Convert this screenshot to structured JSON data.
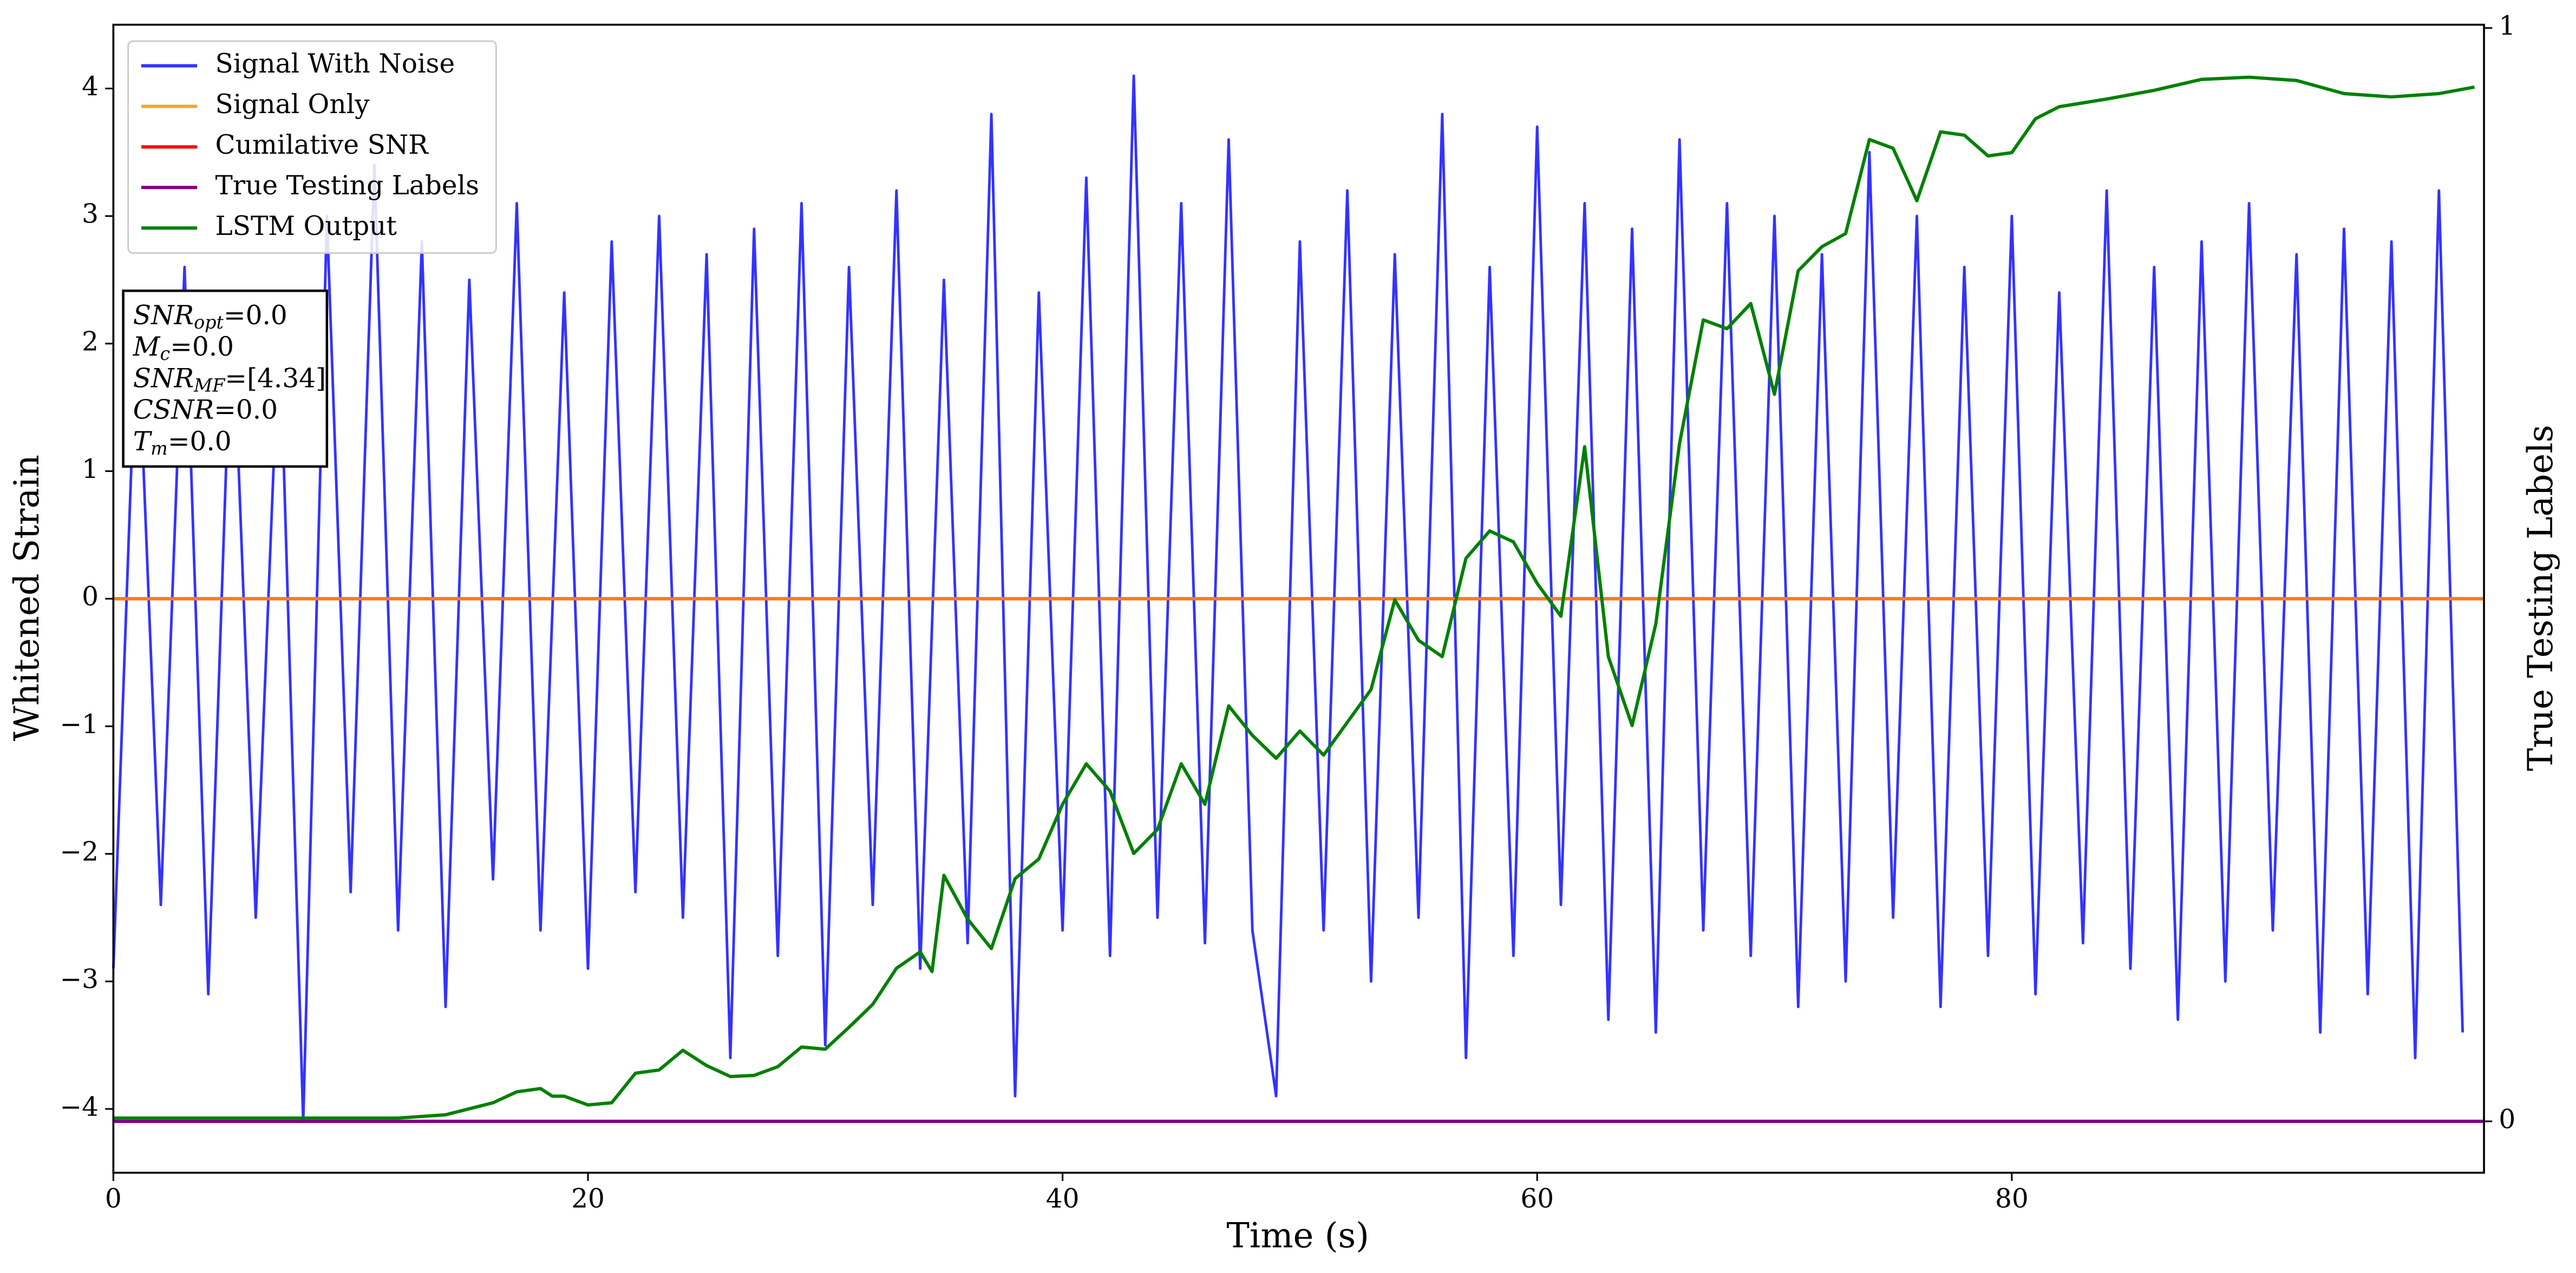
{
  "chart_data": {
    "type": "line",
    "xlabel": "Time (s)",
    "ylabel": "Whitened Strain",
    "y2label": "True Testing Labels",
    "xlim": [
      0,
      99.9
    ],
    "ylim": [
      -4.5,
      4.5
    ],
    "y2lim": [
      -0.047,
      1.003
    ],
    "xticks": [
      0,
      20,
      40,
      60,
      80
    ],
    "yticks": [
      {
        "value": -4,
        "label": "−4"
      },
      {
        "value": -3,
        "label": "−3"
      },
      {
        "value": -2,
        "label": "−2"
      },
      {
        "value": -1,
        "label": "−1"
      },
      0,
      1,
      2,
      3,
      4
    ],
    "y2ticks": [
      0,
      1
    ],
    "legend": "upper left",
    "series": [
      {
        "name": "Signal With Noise",
        "color": "#3333ff",
        "x": [
          0,
          1,
          2,
          3,
          4,
          5,
          6,
          7,
          8,
          9,
          10,
          11,
          12,
          13,
          14,
          15,
          16,
          17,
          18,
          19,
          20,
          21,
          22,
          23,
          24,
          25,
          26,
          27,
          28,
          29,
          30,
          31,
          32,
          33,
          34,
          35,
          36,
          37,
          38,
          39,
          40,
          41,
          42,
          43,
          44,
          45,
          46,
          47,
          48,
          49,
          50,
          51,
          52,
          53,
          54,
          55,
          56,
          57,
          58,
          59,
          60,
          61,
          62,
          63,
          64,
          65,
          66,
          67,
          68,
          69,
          70,
          71,
          72,
          73,
          74,
          75,
          76,
          77,
          78,
          79,
          80,
          81,
          82,
          83,
          84,
          85,
          86,
          87,
          88,
          89,
          90,
          91,
          92,
          93,
          94,
          95,
          96,
          97,
          98,
          99
        ],
        "values": [
          -2.9,
          2.3,
          -2.4,
          2.6,
          -3.1,
          2.4,
          -2.5,
          2.2,
          -4.1,
          3.0,
          -2.3,
          3.4,
          -2.6,
          2.8,
          -3.2,
          2.5,
          -2.2,
          3.1,
          -2.6,
          2.4,
          -2.9,
          2.8,
          -2.3,
          3.0,
          -2.5,
          2.7,
          -3.6,
          2.9,
          -2.8,
          3.1,
          -3.5,
          2.6,
          -2.4,
          3.2,
          -2.9,
          2.5,
          -2.7,
          3.8,
          -3.9,
          2.4,
          -2.6,
          3.3,
          -2.8,
          4.1,
          -2.5,
          3.1,
          -2.7,
          3.6,
          -2.6,
          -3.9,
          2.8,
          -2.6,
          3.2,
          -3.0,
          2.7,
          -2.5,
          3.8,
          -3.6,
          2.6,
          -2.8,
          3.7,
          -2.4,
          3.1,
          -3.3,
          2.9,
          -3.4,
          3.6,
          -2.6,
          3.1,
          -2.8,
          3.0,
          -3.2,
          2.7,
          -3.0,
          3.5,
          -2.5,
          3.0,
          -3.2,
          2.6,
          -2.8,
          3.0,
          -3.1,
          2.4,
          -2.7,
          3.2,
          -2.9,
          2.6,
          -3.3,
          2.8,
          -3.0,
          3.1,
          -2.6,
          2.7,
          -3.4,
          2.9,
          -3.1,
          2.8,
          -3.6,
          3.2,
          -3.4
        ]
      },
      {
        "name": "Signal Only",
        "color": "#f5a623",
        "x": [
          0,
          99.9
        ],
        "values": [
          0,
          0
        ]
      },
      {
        "name": "Cumilative SNR",
        "color": "#ff0000",
        "x": [
          0,
          99.9
        ],
        "values": [
          0,
          0
        ]
      },
      {
        "name": "True Testing Labels",
        "color": "#800080",
        "axis": "y2",
        "x": [
          0,
          99.9
        ],
        "values": [
          0,
          0
        ]
      },
      {
        "name": "LSTM Output",
        "color": "#008000",
        "axis": "y2",
        "x": [
          0,
          10,
          12,
          14,
          16,
          17,
          18,
          18.5,
          19,
          20,
          21,
          22,
          23,
          24,
          25,
          26,
          27,
          28,
          29,
          30,
          31,
          32,
          33,
          34,
          34.5,
          35,
          36,
          37,
          38,
          39,
          40,
          41,
          42,
          43,
          44,
          45,
          46,
          47,
          48,
          49,
          50,
          51,
          52,
          53,
          54,
          55,
          56,
          57,
          58,
          59,
          60,
          61,
          62,
          63,
          64,
          65,
          66,
          67,
          68,
          69,
          70,
          71,
          72,
          73,
          74,
          75,
          76,
          77,
          78,
          79,
          80,
          81,
          82,
          84,
          86,
          88,
          90,
          92,
          94,
          96,
          98,
          99.5
        ],
        "values": [
          0.003,
          0.003,
          0.003,
          0.006,
          0.017,
          0.027,
          0.03,
          0.023,
          0.023,
          0.015,
          0.017,
          0.044,
          0.047,
          0.065,
          0.051,
          0.041,
          0.042,
          0.05,
          0.068,
          0.066,
          0.086,
          0.107,
          0.14,
          0.155,
          0.137,
          0.225,
          0.185,
          0.158,
          0.222,
          0.24,
          0.29,
          0.327,
          0.302,
          0.245,
          0.267,
          0.327,
          0.29,
          0.38,
          0.353,
          0.332,
          0.357,
          0.335,
          0.365,
          0.395,
          0.477,
          0.44,
          0.425,
          0.515,
          0.54,
          0.53,
          0.492,
          0.462,
          0.617,
          0.425,
          0.362,
          0.455,
          0.62,
          0.733,
          0.725,
          0.748,
          0.665,
          0.778,
          0.8,
          0.812,
          0.898,
          0.89,
          0.842,
          0.905,
          0.902,
          0.883,
          0.886,
          0.917,
          0.928,
          0.935,
          0.943,
          0.953,
          0.955,
          0.952,
          0.94,
          0.937,
          0.94,
          0.946
        ]
      }
    ],
    "annotation": [
      {
        "symbol": "SNR",
        "sub": "opt",
        "text": "=0.0"
      },
      {
        "symbol": "M",
        "sub": "c",
        "text": "=0.0"
      },
      {
        "symbol": "SNR",
        "sub": "MF",
        "text": "=[4.34]"
      },
      {
        "symbol": "CSNR",
        "text": "=0.0"
      },
      {
        "symbol": "T",
        "sub": "m",
        "text": "=0.0"
      }
    ]
  }
}
